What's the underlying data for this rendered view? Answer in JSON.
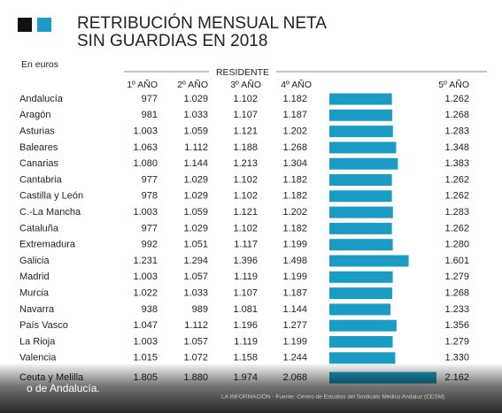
{
  "chart_data": {
    "type": "bar",
    "orientation": "horizontal",
    "title_lines": [
      "RETRIBUCIÓN MENSUAL NETA",
      "SIN GUARDIAS EN 2018"
    ],
    "unit": "En euros",
    "group_header": "RESIDENTE",
    "categories": [
      "Andalucía",
      "Aragón",
      "Asturias",
      "Baleares",
      "Canarias",
      "Cantabria",
      "Castilla y León",
      "C.-La Mancha",
      "Cataluña",
      "Extremadura",
      "Galicia",
      "Madrid",
      "Murcia",
      "Navarra",
      "País Vasco",
      "La Rioja",
      "Valencia",
      "Ceuta y Melilla"
    ],
    "series": [
      {
        "name": "1º AÑO",
        "values": [
          977,
          981,
          1003,
          1063,
          1080,
          977,
          978,
          1003,
          977,
          992,
          1231,
          1003,
          1022,
          938,
          1047,
          1003,
          1015,
          1805
        ],
        "value_labels": [
          "977",
          "981",
          "1.003",
          "1.063",
          "1.080",
          "977",
          "978",
          "1.003",
          "977",
          "992",
          "1.231",
          "1.003",
          "1.022",
          "938",
          "1.047",
          "1.003",
          "1.015",
          "1.805"
        ]
      },
      {
        "name": "2º AÑO",
        "values": [
          1029,
          1033,
          1059,
          1112,
          1144,
          1029,
          1029,
          1059,
          1029,
          1051,
          1294,
          1057,
          1033,
          989,
          1112,
          1057,
          1072,
          1880
        ],
        "value_labels": [
          "1.029",
          "1.033",
          "1.059",
          "1.112",
          "1.144",
          "1.029",
          "1.029",
          "1.059",
          "1.029",
          "1.051",
          "1.294",
          "1.057",
          "1.033",
          "989",
          "1.112",
          "1.057",
          "1.072",
          "1.880"
        ]
      },
      {
        "name": "3º AÑO",
        "values": [
          1102,
          1107,
          1121,
          1188,
          1213,
          1102,
          1102,
          1121,
          1102,
          1117,
          1396,
          1119,
          1107,
          1081,
          1196,
          1119,
          1158,
          1974
        ],
        "value_labels": [
          "1.102",
          "1.107",
          "1.121",
          "1.188",
          "1.213",
          "1.102",
          "1.102",
          "1.121",
          "1.102",
          "1.117",
          "1.396",
          "1.119",
          "1.107",
          "1.081",
          "1.196",
          "1.119",
          "1.158",
          "1.974"
        ]
      },
      {
        "name": "4º AÑO",
        "values": [
          1182,
          1187,
          1202,
          1268,
          1304,
          1182,
          1182,
          1202,
          1182,
          1199,
          1498,
          1199,
          1187,
          1144,
          1277,
          1199,
          1244,
          2068
        ],
        "value_labels": [
          "1.182",
          "1.187",
          "1.202",
          "1.268",
          "1.304",
          "1.182",
          "1.182",
          "1.202",
          "1.182",
          "1.199",
          "1.498",
          "1.199",
          "1.187",
          "1.144",
          "1.277",
          "1.199",
          "1.244",
          "2.068"
        ]
      },
      {
        "name": "5º AÑO",
        "color": "#1a9cc4",
        "values": [
          1262,
          1268,
          1283,
          1348,
          1383,
          1262,
          1262,
          1283,
          1262,
          1280,
          1601,
          1279,
          1268,
          1233,
          1356,
          1279,
          1330,
          2162
        ],
        "value_labels": [
          "1.262",
          "1.268",
          "1.283",
          "1.348",
          "1.383",
          "1.262",
          "1.262",
          "1.283",
          "1.262",
          "1.280",
          "1.601",
          "1.279",
          "1.268",
          "1.233",
          "1.356",
          "1.279",
          "1.330",
          "2.162"
        ]
      }
    ],
    "caption": "o de Andalucía.",
    "source": "LA INFORMACIÓN - Fuente: Centro de Estudios del Sindicato Médico Andaluz (CESM)"
  }
}
